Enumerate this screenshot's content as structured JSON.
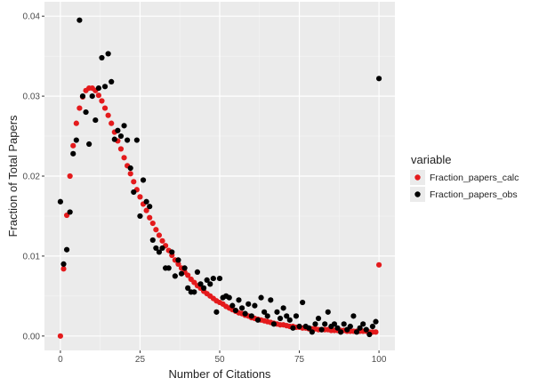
{
  "chart_data": {
    "type": "scatter",
    "title": "",
    "xlabel": "Number of Citations",
    "ylabel": "Fraction of Total Papers",
    "xlim": [
      -5,
      105
    ],
    "ylim": [
      -0.0018,
      0.0418
    ],
    "x_ticks": [
      0,
      25,
      50,
      75,
      100
    ],
    "x_tick_labels": [
      "0",
      "25",
      "50",
      "75",
      "100"
    ],
    "y_ticks": [
      0.0,
      0.01,
      0.02,
      0.03,
      0.04
    ],
    "y_tick_labels": [
      "0.00",
      "0.01",
      "0.02",
      "0.03",
      "0.04"
    ],
    "grid": true,
    "background": "#ebebeb",
    "legend": {
      "title": "variable",
      "position": "right"
    },
    "series": [
      {
        "name": "Fraction_papers_calc",
        "color": "#e41a1c",
        "x": [
          0,
          1,
          2,
          3,
          4,
          5,
          6,
          7,
          8,
          9,
          10,
          11,
          12,
          13,
          14,
          15,
          16,
          17,
          18,
          19,
          20,
          21,
          22,
          23,
          24,
          25,
          26,
          27,
          28,
          29,
          30,
          31,
          32,
          33,
          34,
          35,
          36,
          37,
          38,
          39,
          40,
          41,
          42,
          43,
          44,
          45,
          46,
          47,
          48,
          49,
          50,
          51,
          52,
          53,
          54,
          55,
          56,
          57,
          58,
          59,
          60,
          61,
          62,
          63,
          64,
          65,
          66,
          67,
          68,
          69,
          70,
          71,
          72,
          73,
          74,
          75,
          76,
          77,
          78,
          79,
          80,
          81,
          82,
          83,
          84,
          85,
          86,
          87,
          88,
          89,
          90,
          91,
          92,
          93,
          94,
          95,
          96,
          97,
          98,
          99,
          100
        ],
        "y": [
          0.0,
          0.0084,
          0.0151,
          0.02,
          0.0238,
          0.0266,
          0.0285,
          0.0299,
          0.0307,
          0.031,
          0.031,
          0.0307,
          0.0301,
          0.0294,
          0.0285,
          0.0276,
          0.0266,
          0.0255,
          0.0244,
          0.0234,
          0.0223,
          0.0213,
          0.0203,
          0.0193,
          0.0183,
          0.0174,
          0.0165,
          0.0157,
          0.0148,
          0.0141,
          0.0133,
          0.0126,
          0.0119,
          0.0113,
          0.0107,
          0.0101,
          0.0095,
          0.009,
          0.0085,
          0.008,
          0.0076,
          0.0071,
          0.0067,
          0.0063,
          0.006,
          0.0056,
          0.0053,
          0.005,
          0.0047,
          0.0044,
          0.0042,
          0.004,
          0.0037,
          0.0035,
          0.0033,
          0.0031,
          0.0029,
          0.0028,
          0.0026,
          0.0025,
          0.0023,
          0.0022,
          0.0021,
          0.002,
          0.0019,
          0.0018,
          0.0017,
          0.0016,
          0.0015,
          0.0014,
          0.0014,
          0.0013,
          0.0012,
          0.0012,
          0.0011,
          0.0011,
          0.001,
          0.001,
          0.0009,
          0.0009,
          0.0009,
          0.0008,
          0.0008,
          0.0008,
          0.0008,
          0.0007,
          0.0007,
          0.0007,
          0.0007,
          0.0007,
          0.0006,
          0.0006,
          0.0006,
          0.0006,
          0.0006,
          0.0006,
          0.0006,
          0.0005,
          0.0005,
          0.0005,
          0.0089
        ]
      },
      {
        "name": "Fraction_papers_obs",
        "color": "#000000",
        "x": [
          0,
          1,
          2,
          3,
          4,
          5,
          6,
          7,
          8,
          9,
          10,
          11,
          12,
          13,
          14,
          15,
          16,
          17,
          18,
          19,
          20,
          21,
          22,
          23,
          24,
          25,
          26,
          27,
          28,
          29,
          30,
          31,
          32,
          33,
          34,
          35,
          36,
          37,
          38,
          39,
          40,
          41,
          42,
          43,
          44,
          45,
          46,
          47,
          48,
          49,
          50,
          51,
          52,
          53,
          54,
          55,
          56,
          57,
          58,
          59,
          60,
          61,
          62,
          63,
          64,
          65,
          66,
          67,
          68,
          69,
          70,
          71,
          72,
          73,
          74,
          75,
          76,
          77,
          78,
          79,
          80,
          81,
          82,
          83,
          84,
          85,
          86,
          87,
          88,
          89,
          90,
          91,
          92,
          93,
          94,
          95,
          96,
          97,
          98,
          99,
          100
        ],
        "y": [
          0.0168,
          0.009,
          0.0108,
          0.0155,
          0.0228,
          0.0245,
          0.0395,
          0.03,
          0.028,
          0.024,
          0.03,
          0.027,
          0.031,
          0.0348,
          0.0312,
          0.0353,
          0.0318,
          0.0246,
          0.0257,
          0.025,
          0.0263,
          0.0245,
          0.021,
          0.018,
          0.0245,
          0.015,
          0.0195,
          0.0168,
          0.0162,
          0.012,
          0.011,
          0.0105,
          0.011,
          0.0085,
          0.0085,
          0.0105,
          0.0075,
          0.0095,
          0.0078,
          0.0085,
          0.006,
          0.0055,
          0.0055,
          0.008,
          0.0065,
          0.006,
          0.007,
          0.0065,
          0.0072,
          0.003,
          0.0072,
          0.0048,
          0.005,
          0.0048,
          0.0038,
          0.0032,
          0.0045,
          0.0035,
          0.0028,
          0.004,
          0.0025,
          0.0038,
          0.002,
          0.0048,
          0.003,
          0.0025,
          0.0045,
          0.0015,
          0.003,
          0.0022,
          0.0035,
          0.0025,
          0.002,
          0.001,
          0.0025,
          0.0012,
          0.0042,
          0.0012,
          0.001,
          0.0005,
          0.0015,
          0.0022,
          0.0008,
          0.0015,
          0.003,
          0.0012,
          0.0015,
          0.001,
          0.0005,
          0.0015,
          0.0008,
          0.0012,
          0.0025,
          0.0005,
          0.001,
          0.0015,
          0.0008,
          0.0002,
          0.0012,
          0.0018,
          0.0322
        ]
      }
    ]
  }
}
